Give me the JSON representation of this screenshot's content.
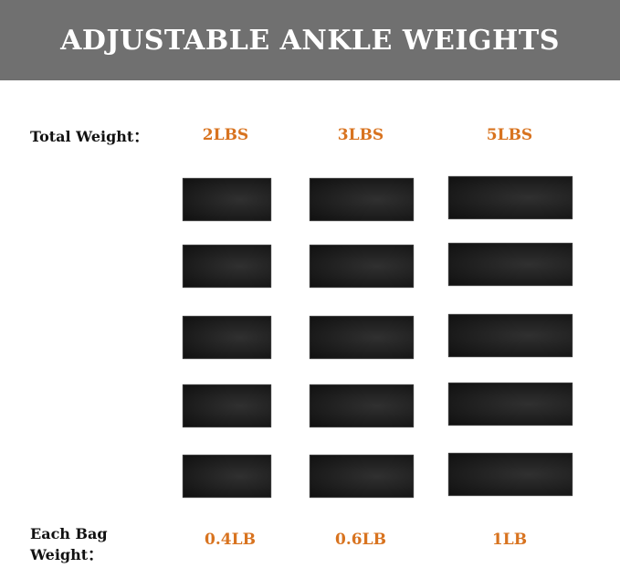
{
  "title": "ADJUSTABLE ANKLE WEIGHTS",
  "total_weight_label": "Total Weight：",
  "each_bag_label_line1": "Each Bag",
  "each_bag_label_line2": "Weight：",
  "columns": [
    {
      "total": "2LBS",
      "each": "0.4LB",
      "bags": 5
    },
    {
      "total": "3LBS",
      "each": "0.6LB",
      "bags": 5
    },
    {
      "total": "5LBS",
      "each": "1LB",
      "bags": 5
    }
  ],
  "colors": {
    "banner": "#707070",
    "accent": "#d8731f",
    "bag": "#1a1a1a"
  }
}
